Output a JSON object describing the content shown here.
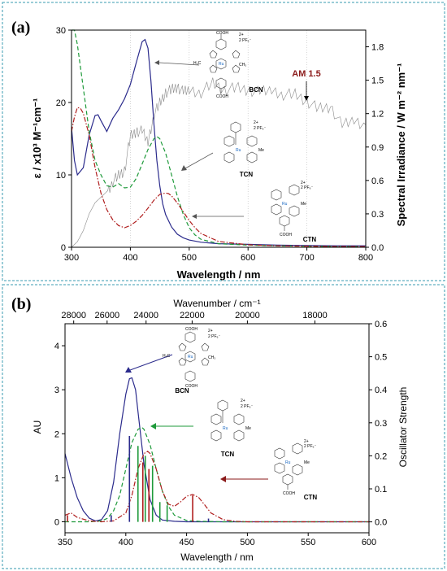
{
  "panel_a": {
    "label": "(a)",
    "xlabel": "Wavelength / nm",
    "ylabel_left": "ε  /  x10³ M⁻¹cm⁻¹",
    "ylabel_right": "Spectral Irradiance / W m⁻² nm⁻¹",
    "annotation_am": "AM 1.5",
    "compounds": [
      "BCN",
      "TCN",
      "CTN"
    ],
    "cooh": "COOH",
    "pf6": "2 PF₆⁻",
    "charge": "2+",
    "h3c": "H₃C",
    "ch3": "CH₃",
    "me": "Me",
    "ru": "Ru"
  },
  "panel_b": {
    "label": "(b)",
    "xlabel": "Wavelength / nm",
    "xlabel_top": "Wavenumber / cm⁻¹",
    "ylabel_left": "AU",
    "ylabel_right": "Oscillator Strength",
    "compounds": [
      "BCN",
      "TCN",
      "CTN"
    ]
  },
  "colors": {
    "BCN": "#2b2b8c",
    "TCN": "#1e9a3a",
    "CTN": "#b01e1e",
    "irradiance": "#8a8a8a",
    "frame": "#3a9bb0"
  },
  "chart_data": [
    {
      "type": "line",
      "panel": "a",
      "x_range": [
        300,
        800
      ],
      "x_ticks": [
        300,
        400,
        500,
        600,
        700,
        800
      ],
      "y_left_range": [
        0,
        30
      ],
      "y_left_ticks": [
        0,
        10,
        20,
        30
      ],
      "y_right_range": [
        0,
        1.95
      ],
      "y_right_ticks": [
        "0.0",
        "0.3",
        "0.6",
        "0.9",
        "1.2",
        "1.5",
        "1.8"
      ],
      "grid": true,
      "series": [
        {
          "name": "BCN",
          "style": "solid",
          "x": [
            300,
            305,
            310,
            320,
            330,
            340,
            345,
            350,
            360,
            370,
            380,
            390,
            400,
            410,
            420,
            425,
            430,
            435,
            440,
            445,
            450,
            455,
            460,
            470,
            480,
            490,
            500,
            520,
            550,
            600,
            650,
            700,
            750,
            800
          ],
          "y": [
            16.5,
            12,
            10,
            11,
            15.5,
            18.2,
            18.3,
            17.5,
            16,
            17.8,
            19,
            20.5,
            22.5,
            25.5,
            28.4,
            28.7,
            27.5,
            23,
            17,
            12,
            8.5,
            6,
            4.5,
            2.8,
            1.8,
            1.3,
            1.0,
            0.7,
            0.5,
            0.4,
            0.3,
            0.25,
            0.2,
            0.2
          ]
        },
        {
          "name": "TCN",
          "style": "dashed",
          "x": [
            300,
            305,
            310,
            320,
            330,
            340,
            350,
            360,
            370,
            380,
            390,
            400,
            410,
            420,
            430,
            440,
            445,
            450,
            460,
            470,
            480,
            490,
            500,
            510,
            520,
            550,
            600,
            650,
            700,
            750,
            800
          ],
          "y": [
            30,
            30,
            28,
            22,
            16,
            12,
            10,
            8.5,
            8.3,
            8.8,
            8.2,
            8.3,
            9.5,
            11.5,
            13.5,
            15,
            15.3,
            15,
            13,
            10,
            7,
            4.5,
            2.7,
            1.7,
            1.1,
            0.5,
            0.3,
            0.2,
            0.15,
            0.1,
            0.1
          ]
        },
        {
          "name": "CTN",
          "style": "dashdot",
          "x": [
            300,
            305,
            310,
            315,
            320,
            330,
            340,
            350,
            360,
            370,
            380,
            390,
            400,
            410,
            420,
            430,
            440,
            450,
            460,
            465,
            470,
            480,
            490,
            500,
            510,
            520,
            550,
            600,
            650,
            700,
            750,
            800
          ],
          "y": [
            16,
            18,
            19.3,
            19.2,
            18.5,
            15.5,
            11,
            7.5,
            5.2,
            3.8,
            3,
            2.7,
            3,
            3.6,
            4.4,
            5.4,
            6.5,
            7.3,
            7.5,
            7.4,
            7.1,
            6.1,
            4.9,
            3.7,
            2.7,
            1.9,
            0.8,
            0.35,
            0.2,
            0.15,
            0.1,
            0.1
          ]
        },
        {
          "name": "AM 1.5",
          "axis": "right",
          "style": "thin",
          "x": [
            300,
            310,
            320,
            330,
            340,
            350,
            360,
            370,
            380,
            390,
            400,
            410,
            420,
            430,
            440,
            450,
            460,
            470,
            480,
            490,
            500,
            520,
            540,
            560,
            580,
            600,
            620,
            640,
            660,
            680,
            700,
            720,
            740,
            760,
            780,
            800
          ],
          "y": [
            0.0,
            0.05,
            0.15,
            0.3,
            0.4,
            0.45,
            0.5,
            0.6,
            0.65,
            0.7,
            1.0,
            1.05,
            1.05,
            0.95,
            1.2,
            1.3,
            1.4,
            1.42,
            1.45,
            1.4,
            1.42,
            1.4,
            1.48,
            1.42,
            1.44,
            1.42,
            1.4,
            1.42,
            1.38,
            1.38,
            1.32,
            1.25,
            1.27,
            1.1,
            1.15,
            1.1
          ]
        }
      ]
    },
    {
      "type": "line",
      "panel": "b",
      "x_range": [
        350,
        600
      ],
      "x_ticks": [
        350,
        400,
        450,
        500,
        550,
        600
      ],
      "x_top_ticks": [
        28000,
        26000,
        24000,
        22000,
        20000,
        18000
      ],
      "y_left_range": [
        -0.25,
        4.5
      ],
      "y_left_ticks": [
        0,
        1,
        2,
        3,
        4
      ],
      "y_right_range": [
        -0.033,
        0.6
      ],
      "y_right_ticks": [
        "0.0",
        "0.1",
        "0.2",
        "0.3",
        "0.4",
        "0.5",
        "0.6"
      ],
      "grid": false,
      "series": [
        {
          "name": "BCN",
          "style": "solid",
          "x": [
            350,
            355,
            360,
            365,
            370,
            375,
            380,
            385,
            390,
            395,
            400,
            403,
            405,
            408,
            410,
            415,
            420,
            425,
            430,
            440,
            450,
            460,
            480,
            500,
            550,
            600
          ],
          "y": [
            1.55,
            1.0,
            0.55,
            0.25,
            0.08,
            0.02,
            0.05,
            0.25,
            0.9,
            2.0,
            2.9,
            3.25,
            3.27,
            3.0,
            2.5,
            1.3,
            0.5,
            0.15,
            0.04,
            0.01,
            0.0,
            0.0,
            0.0,
            0.0,
            0.0,
            0.0
          ]
        },
        {
          "name": "TCN",
          "style": "dashed",
          "x": [
            350,
            360,
            370,
            380,
            385,
            390,
            395,
            400,
            405,
            410,
            413,
            415,
            420,
            425,
            430,
            435,
            440,
            450,
            460,
            480,
            500,
            550,
            600
          ],
          "y": [
            0.0,
            0.0,
            0.0,
            0.02,
            0.08,
            0.25,
            0.6,
            1.2,
            1.8,
            2.1,
            2.15,
            2.1,
            1.75,
            1.2,
            0.7,
            0.35,
            0.15,
            0.03,
            0.01,
            0.0,
            0.0,
            0.0,
            0.0
          ]
        },
        {
          "name": "CTN",
          "style": "dashdot",
          "x": [
            350,
            355,
            360,
            370,
            380,
            390,
            400,
            405,
            410,
            415,
            418,
            420,
            425,
            430,
            435,
            440,
            445,
            450,
            455,
            460,
            465,
            470,
            480,
            490,
            500,
            550,
            600
          ],
          "y": [
            0.15,
            0.2,
            0.1,
            0.02,
            0.0,
            0.02,
            0.2,
            0.6,
            1.2,
            1.55,
            1.6,
            1.55,
            1.2,
            0.7,
            0.4,
            0.35,
            0.45,
            0.58,
            0.62,
            0.55,
            0.38,
            0.2,
            0.05,
            0.01,
            0.0,
            0.0,
            0.0
          ]
        }
      ],
      "sticks": [
        {
          "series": "BCN",
          "x": 403,
          "f": 0.26
        },
        {
          "series": "BCN",
          "x": 388,
          "f": 0.02
        },
        {
          "series": "BCN",
          "x": 468,
          "f": 0.01
        },
        {
          "series": "TCN",
          "x": 410,
          "f": 0.23
        },
        {
          "series": "TCN",
          "x": 416,
          "f": 0.2
        },
        {
          "series": "TCN",
          "x": 422,
          "f": 0.17
        },
        {
          "series": "TCN",
          "x": 428,
          "f": 0.06
        },
        {
          "series": "TCN",
          "x": 434,
          "f": 0.05
        },
        {
          "series": "CTN",
          "x": 414,
          "f": 0.18
        },
        {
          "series": "CTN",
          "x": 419,
          "f": 0.16
        },
        {
          "series": "CTN",
          "x": 455,
          "f": 0.08
        },
        {
          "series": "CTN",
          "x": 352,
          "f": 0.02
        }
      ]
    }
  ]
}
